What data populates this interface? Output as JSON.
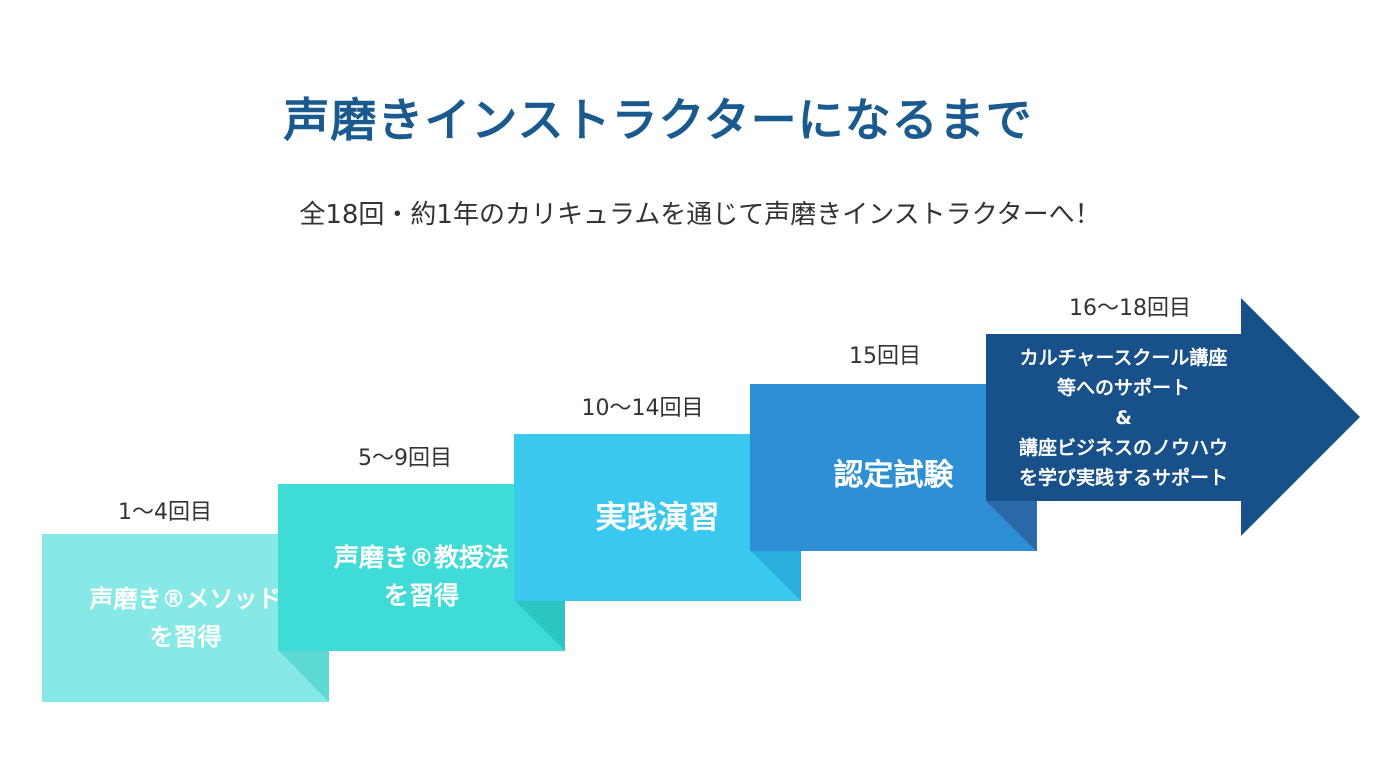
{
  "title": "声磨きインストラクターになるまで",
  "subtitle": "全18回・約1年のカリキュラムを通じて声磨きインストラクターへ！",
  "steps": [
    {
      "label": "1〜4回目",
      "text_line1": "声磨き®メソッド",
      "text_line2": "を習得",
      "color": "#86e9e6",
      "fold_color": "#5dd9d4"
    },
    {
      "label": "5〜9回目",
      "text_line1": "声磨き®教授法",
      "text_line2": "を習得",
      "color": "#3fdbd6",
      "fold_color": "#2cc6c1"
    },
    {
      "label": "10〜14回目",
      "text_line1": "実践演習",
      "color": "#3ac8ee",
      "fold_color": "#2aaedb"
    },
    {
      "label": "15回目",
      "text_line1": "認定試験",
      "color": "#2f8fd4",
      "fold_color": "#2776b8"
    },
    {
      "label": "16〜18回目",
      "text_line1": "カルチャースクール講座",
      "text_line2": "等へのサポート",
      "text_line3": "&",
      "text_line4": "講座ビジネスのノウハウ",
      "text_line5": "を学び実践するサポート",
      "color": "#185189",
      "fold_color": "#2a6aa8"
    }
  ]
}
